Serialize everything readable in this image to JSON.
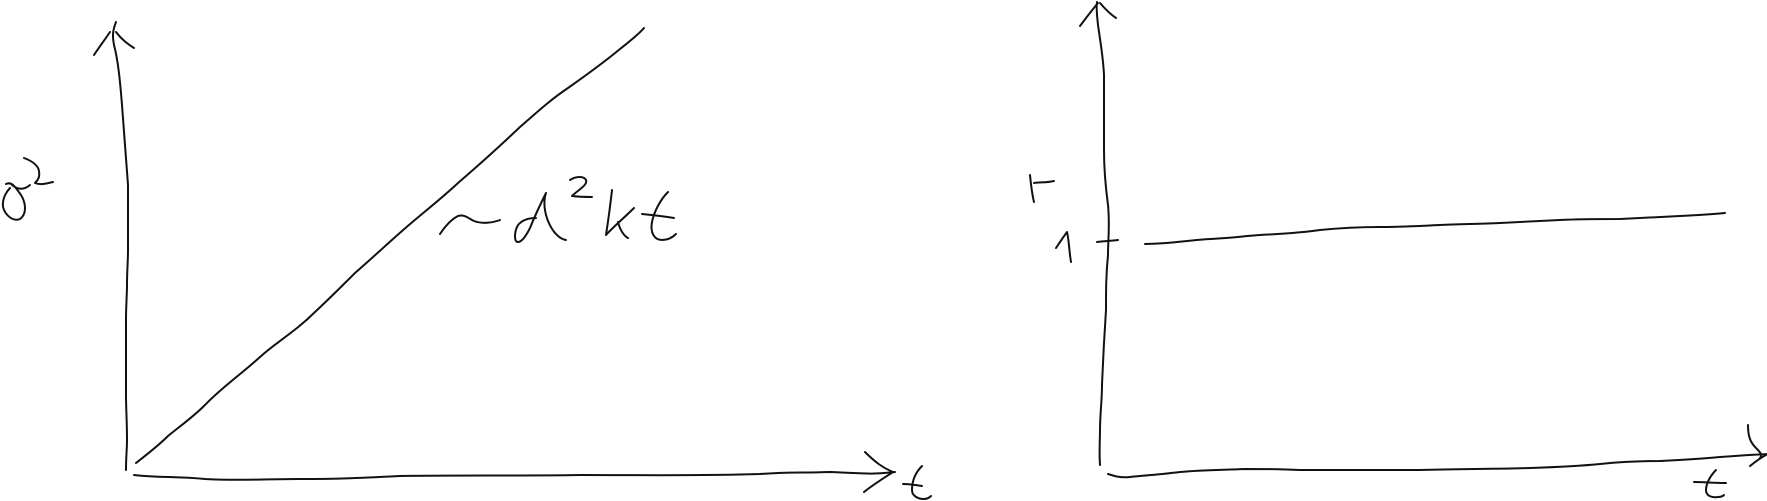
{
  "chart_data": [
    {
      "type": "line",
      "xlabel": "t",
      "ylabel": "σ²",
      "annotation": "~ d²kt",
      "x": [
        0,
        1,
        2,
        3,
        4,
        5,
        6
      ],
      "series": [
        {
          "values": [
            0,
            1,
            2,
            3,
            4,
            5,
            6
          ]
        }
      ],
      "xlim": [
        0,
        6.2
      ],
      "ylim": [
        0,
        6.2
      ],
      "grid": false,
      "color": "#111111"
    },
    {
      "type": "line",
      "xlabel": "t",
      "ylabel": "r",
      "tick_labels_y": [
        "1"
      ],
      "x": [
        0,
        1,
        2,
        3,
        4,
        5,
        6
      ],
      "series": [
        {
          "values": [
            1,
            1,
            1,
            1,
            1,
            1,
            1
          ]
        }
      ],
      "xlim": [
        0,
        6.2
      ],
      "ylim": [
        0,
        2.3
      ],
      "grid": false,
      "color": "#111111"
    }
  ]
}
